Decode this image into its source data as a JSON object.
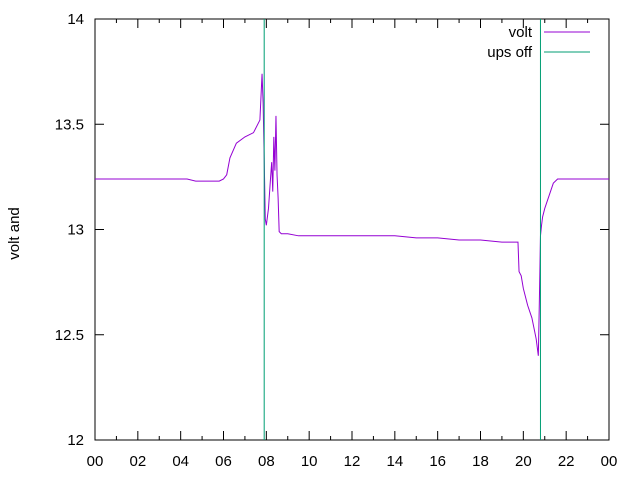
{
  "chart_data": {
    "type": "line",
    "title": "",
    "xlabel": "",
    "ylabel": "volt and",
    "xlim": [
      0,
      24
    ],
    "ylim": [
      12,
      14
    ],
    "x_ticks": [
      "00",
      "02",
      "04",
      "06",
      "08",
      "10",
      "12",
      "14",
      "16",
      "18",
      "20",
      "22",
      "00"
    ],
    "y_ticks": [
      "12",
      "12.5",
      "13",
      "13.5",
      "14"
    ],
    "grid": false,
    "legend_position": "top-right",
    "colors": {
      "volt": "#9400d3",
      "ups_off": "#009e73"
    },
    "series": [
      {
        "name": "volt",
        "x": [
          0,
          1.5,
          3,
          4.3,
          4.7,
          5.0,
          5.4,
          5.8,
          6.0,
          6.15,
          6.3,
          6.6,
          7.0,
          7.4,
          7.7,
          7.8,
          7.85,
          7.9,
          7.95,
          8.0,
          8.1,
          8.2,
          8.25,
          8.3,
          8.35,
          8.4,
          8.45,
          8.5,
          8.55,
          8.6,
          8.7,
          9.0,
          9.5,
          10,
          11,
          12,
          13,
          14,
          15,
          16,
          17,
          18,
          19,
          19.75,
          19.8,
          19.9,
          20.0,
          20.2,
          20.4,
          20.6,
          20.7,
          20.75,
          20.8,
          20.85,
          20.9,
          21.0,
          21.2,
          21.4,
          21.6,
          22,
          22.5,
          23,
          24
        ],
        "values": [
          13.24,
          13.24,
          13.24,
          13.24,
          13.23,
          13.23,
          13.23,
          13.23,
          13.24,
          13.26,
          13.34,
          13.41,
          13.44,
          13.46,
          13.52,
          13.74,
          13.6,
          13.34,
          13.05,
          13.02,
          13.1,
          13.25,
          13.32,
          13.18,
          13.44,
          13.28,
          13.54,
          13.26,
          13.15,
          12.99,
          12.98,
          12.98,
          12.97,
          12.97,
          12.97,
          12.97,
          12.97,
          12.97,
          12.96,
          12.96,
          12.95,
          12.95,
          12.94,
          12.94,
          12.8,
          12.78,
          12.72,
          12.64,
          12.58,
          12.48,
          12.4,
          12.67,
          12.97,
          13.02,
          13.06,
          13.1,
          13.16,
          13.22,
          13.24,
          13.24,
          13.24,
          13.24,
          13.24
        ]
      },
      {
        "name": "ups off",
        "x_events": [
          7.9,
          20.8
        ]
      }
    ]
  }
}
